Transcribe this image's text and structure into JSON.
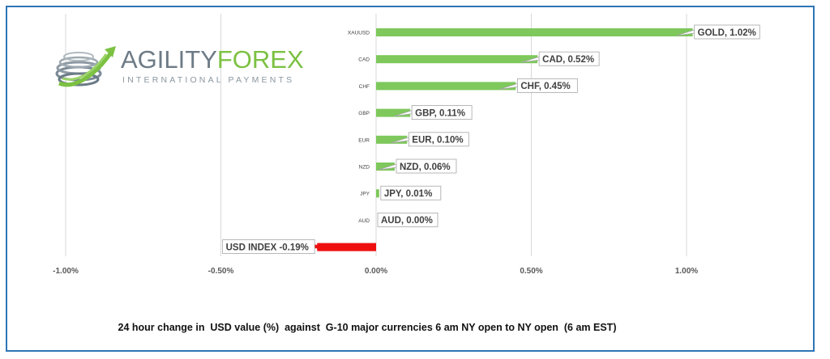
{
  "logo": {
    "name_part1": "AGILITY",
    "name_part2": "FOREX",
    "tagline": "INTERNATIONAL PAYMENTS"
  },
  "caption": "24 hour change in  USD value (%)  against  G-10 major currencies 6 am NY open to NY open  (6 am EST)",
  "colors": {
    "positive_bar": "#7ec85c",
    "negative_bar": "#ee1010",
    "gridline": "#d9d9d9",
    "axis_label": "#595959",
    "frame_border": "#2e75b6"
  },
  "chart_data": {
    "type": "bar",
    "orientation": "horizontal",
    "categories": [
      "XAUUSD",
      "CAD",
      "CHF",
      "GBP",
      "EUR",
      "NZD",
      "JPY",
      "AUD",
      ""
    ],
    "values": [
      1.02,
      0.52,
      0.45,
      0.11,
      0.1,
      0.06,
      0.01,
      0.0,
      -0.19
    ],
    "data_labels": [
      "GOLD, 1.02%",
      "CAD, 0.52%",
      "CHF, 0.45%",
      "GBP, 0.11%",
      "EUR, 0.10%",
      "NZD, 0.06%",
      "JPY, 0.01%",
      "AUD, 0.00%",
      "USD INDEX -0.19%"
    ],
    "xlim": [
      -1.0,
      1.0
    ],
    "x_ticks": [
      -1.0,
      -0.5,
      0.0,
      0.5,
      1.0
    ],
    "x_tick_labels": [
      "-1.00%",
      "-0.50%",
      "0.00%",
      "0.50%",
      "1.00%"
    ],
    "grid": "vertical",
    "legend": "none"
  }
}
